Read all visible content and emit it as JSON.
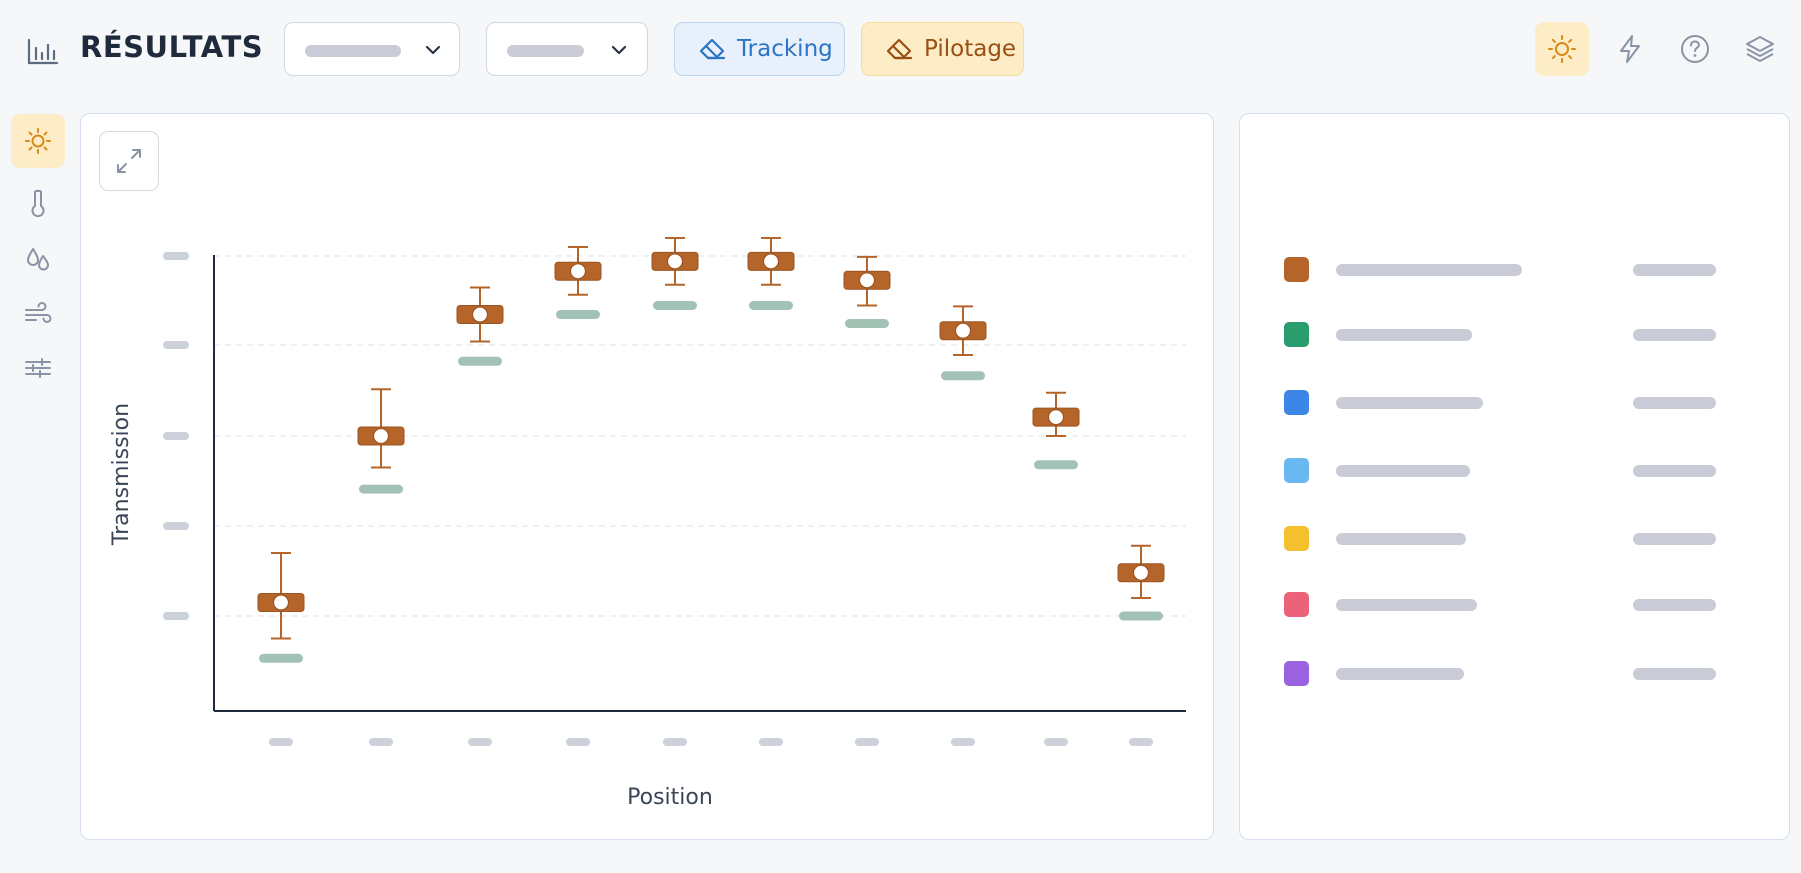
{
  "header": {
    "title": "RÉSULTATS",
    "selects": [
      {
        "value": ""
      },
      {
        "value": ""
      }
    ],
    "chips": {
      "tracking": "Tracking",
      "pilotage": "Pilotage"
    },
    "icons": [
      "sun-icon",
      "lightning-icon",
      "help-icon",
      "layers-icon"
    ]
  },
  "sidebar": {
    "items": [
      {
        "icon": "sun-icon",
        "active": true
      },
      {
        "icon": "thermometer-icon",
        "active": false
      },
      {
        "icon": "droplets-icon",
        "active": false
      },
      {
        "icon": "wind-icon",
        "active": false
      },
      {
        "icon": "sliders-icon",
        "active": false
      }
    ]
  },
  "colors": {
    "accent_orange": "#b5652a",
    "reference_green": "#9dbfb1",
    "active_bg": "#fdedc7",
    "legend": [
      "#b5652a",
      "#2a9d6f",
      "#3b86e6",
      "#6ab8f2",
      "#f5c02d",
      "#ec6279",
      "#9a62e0"
    ]
  },
  "chart_data": {
    "type": "box",
    "xlabel": "Position",
    "ylabel": "Transmission",
    "ylim": [
      0,
      5
    ],
    "grid": true,
    "categories": [
      "",
      "",
      "",
      "",
      "",
      "",
      "",
      "",
      "",
      ""
    ],
    "series": [
      {
        "color": "#b5652a",
        "values": [
          {
            "median": 1.15,
            "q1": 1.05,
            "q3": 1.25,
            "whisker_low": 0.75,
            "whisker_high": 1.7
          },
          {
            "median": 3.0,
            "q1": 2.9,
            "q3": 3.1,
            "whisker_low": 2.65,
            "whisker_high": 3.52
          },
          {
            "median": 4.35,
            "q1": 4.25,
            "q3": 4.45,
            "whisker_low": 4.05,
            "whisker_high": 4.65
          },
          {
            "median": 4.83,
            "q1": 4.73,
            "q3": 4.93,
            "whisker_low": 4.57,
            "whisker_high": 5.1
          },
          {
            "median": 4.94,
            "q1": 4.84,
            "q3": 5.04,
            "whisker_low": 4.68,
            "whisker_high": 5.2
          },
          {
            "median": 4.94,
            "q1": 4.84,
            "q3": 5.04,
            "whisker_low": 4.68,
            "whisker_high": 5.2
          },
          {
            "median": 4.73,
            "q1": 4.63,
            "q3": 4.83,
            "whisker_low": 4.45,
            "whisker_high": 4.99
          },
          {
            "median": 4.17,
            "q1": 4.07,
            "q3": 4.27,
            "whisker_low": 3.9,
            "whisker_high": 4.44
          },
          {
            "median": 3.21,
            "q1": 3.11,
            "q3": 3.31,
            "whisker_low": 3.0,
            "whisker_high": 3.48
          },
          {
            "median": 1.48,
            "q1": 1.38,
            "q3": 1.58,
            "whisker_low": 1.2,
            "whisker_high": 1.78
          }
        ]
      },
      {
        "color": "#9dbfb1",
        "values": [
          0.53,
          2.41,
          3.83,
          4.35,
          4.45,
          4.45,
          4.25,
          3.67,
          2.68,
          1.0
        ]
      }
    ]
  },
  "legend": {
    "items": [
      {
        "color": "#b5652a"
      },
      {
        "color": "#2a9d6f"
      },
      {
        "color": "#3b86e6"
      },
      {
        "color": "#6ab8f2"
      },
      {
        "color": "#f5c02d"
      },
      {
        "color": "#ec6279"
      },
      {
        "color": "#9a62e0"
      }
    ]
  }
}
